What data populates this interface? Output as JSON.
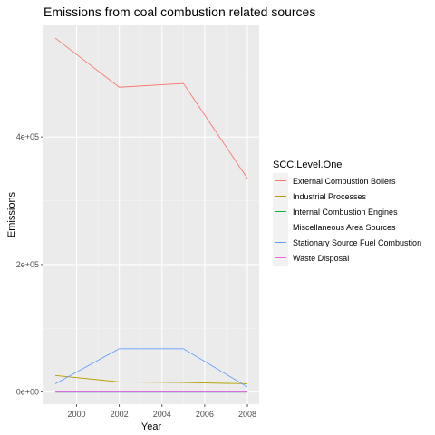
{
  "chart_data": {
    "type": "line",
    "title": "Emissions from coal combustion related sources",
    "xlabel": "Year",
    "ylabel": "Emissions",
    "x": [
      1999,
      2002,
      2005,
      2008
    ],
    "xlim": [
      1998.45,
      2008.55
    ],
    "ylim": [
      -19000,
      575000
    ],
    "xticks": [
      2000,
      2002,
      2004,
      2006,
      2008
    ],
    "xtick_labels": [
      "2000",
      "2002",
      "2004",
      "2006",
      "2008"
    ],
    "yticks": [
      0,
      200000,
      400000
    ],
    "ytick_labels": [
      "0e+00",
      "2e+05",
      "4e+05"
    ],
    "grid": true,
    "legend_position": "right",
    "legend_title": "SCC.Level.One",
    "series": [
      {
        "name": "External Combustion Boilers",
        "color": "#F8766D",
        "values": [
          555000,
          478000,
          484000,
          335000
        ]
      },
      {
        "name": "Industrial Processes",
        "color": "#B79F00",
        "values": [
          26000,
          16000,
          15000,
          13000
        ]
      },
      {
        "name": "Internal Combustion Engines",
        "color": "#00BA38",
        "values": [
          0,
          0,
          0,
          0
        ]
      },
      {
        "name": "Miscellaneous Area Sources",
        "color": "#00BFC4",
        "values": [
          0,
          0,
          0,
          0
        ]
      },
      {
        "name": "Stationary Source Fuel Combustion",
        "color": "#619CFF",
        "values": [
          13000,
          68000,
          68000,
          8000
        ]
      },
      {
        "name": "Waste Disposal",
        "color": "#F564E3",
        "values": [
          0,
          0,
          0,
          0
        ]
      }
    ]
  }
}
